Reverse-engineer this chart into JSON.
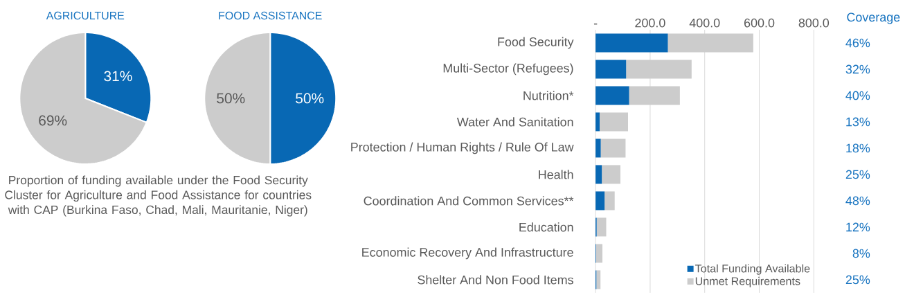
{
  "chart_data": [
    {
      "type": "pie",
      "title": "AGRICULTURE",
      "categories": [
        null,
        null
      ],
      "values": [
        31,
        69
      ],
      "colors": [
        "#0868b4",
        "#cccccc"
      ],
      "value_labels": [
        "31%",
        "69%"
      ],
      "annotations": [
        "Proportion of funding available under the Food Security Cluster for Agriculture and Food Assistance for countries with CAP (Burkina Faso, Chad, Mali, Mauritanie, Niger)"
      ]
    },
    {
      "type": "pie",
      "title": "FOOD ASSISTANCE",
      "categories": [
        null,
        null
      ],
      "values": [
        50,
        50
      ],
      "colors": [
        "#0868b4",
        "#cccccc"
      ],
      "value_labels": [
        "50%",
        "50%"
      ]
    },
    {
      "type": "bar",
      "orientation": "horizontal",
      "stacked": true,
      "categories": [
        "Food Security",
        "Multi-Sector (Refugees)",
        "Nutrition*",
        "Water And Sanitation",
        "Protection / Human Rights / Rule Of Law",
        "Health",
        "Coordination And Common Services**",
        "Education",
        "Economic Recovery And Infrastructure",
        "Shelter And Non Food Items"
      ],
      "series": [
        {
          "name": "Total Funding Available",
          "color": "#0868b4",
          "values": [
            265,
            112,
            123,
            15,
            19,
            23,
            33,
            4,
            2,
            3
          ]
        },
        {
          "name": "Unmet Requirements",
          "color": "#cccccc",
          "values": [
            313,
            240,
            186,
            104,
            91,
            68,
            37,
            35,
            23,
            15
          ]
        }
      ],
      "xlim": [
        0,
        800
      ],
      "xticks": [
        {
          "value": 0,
          "label": "-"
        },
        {
          "value": 200,
          "label": "200.0"
        },
        {
          "value": 400,
          "label": "400.0"
        },
        {
          "value": 600,
          "label": "600.0"
        },
        {
          "value": 800,
          "label": "800.0"
        }
      ],
      "grid": "x",
      "legend": "bottom right",
      "annotations": [
        "Coverage",
        "46%",
        "32%",
        "40%",
        "13%",
        "18%",
        "25%",
        "48%",
        "12%",
        "8%",
        "25%"
      ]
    }
  ]
}
